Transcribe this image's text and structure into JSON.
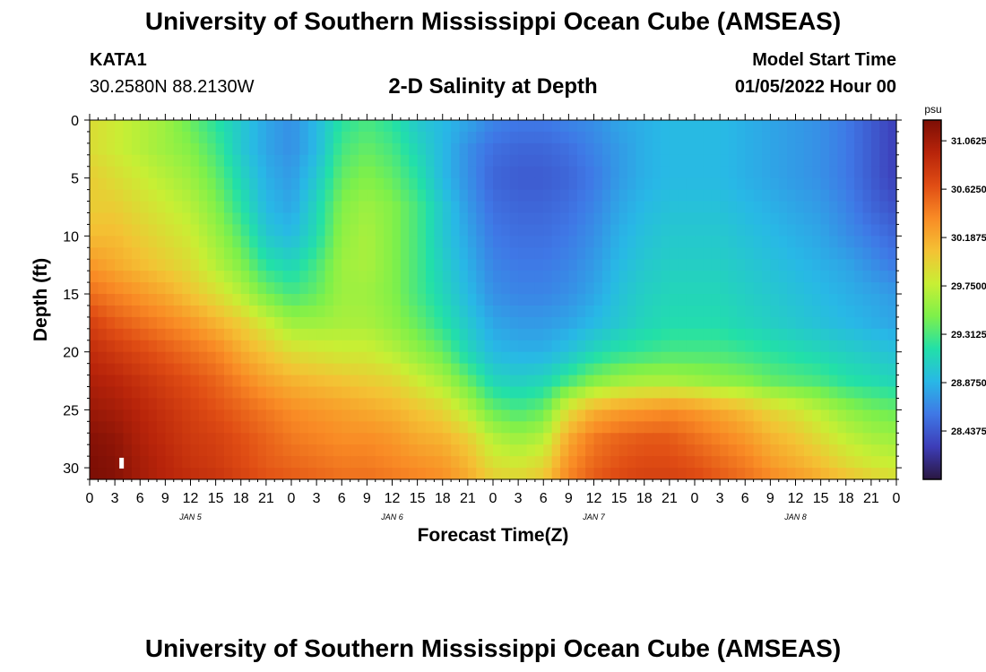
{
  "header": {
    "title": "University of Southern Mississippi Ocean Cube (AMSEAS)",
    "station_id": "KATA1",
    "coordinates": "30.2580N  88.2130W",
    "subtitle": "2-D Salinity at Depth",
    "model_start_label": "Model Start Time",
    "model_start_value": "01/05/2022 Hour 00"
  },
  "footer": {
    "title": "University of Southern Mississippi Ocean Cube (AMSEAS)"
  },
  "chart_data": {
    "type": "heatmap",
    "title": "2-D Salinity at Depth",
    "xlabel": "Forecast Time(Z)",
    "ylabel": "Depth (ft)",
    "x_tick_labels": [
      "0",
      "3",
      "6",
      "9",
      "12",
      "15",
      "18",
      "21",
      "0",
      "3",
      "6",
      "9",
      "12",
      "15",
      "18",
      "21",
      "0",
      "3",
      "6",
      "9",
      "12",
      "15",
      "18",
      "21",
      "0",
      "3",
      "6",
      "9",
      "12",
      "15",
      "18",
      "21",
      "0"
    ],
    "day_labels": [
      {
        "label": "JAN 5",
        "hour": 12
      },
      {
        "label": "JAN 6",
        "hour": 36
      },
      {
        "label": "JAN 7",
        "hour": 60
      },
      {
        "label": "JAN 8",
        "hour": 84
      }
    ],
    "xlim_hours": [
      0,
      96
    ],
    "ylim_ft": [
      0,
      31
    ],
    "y_ticks": [
      0,
      5,
      10,
      15,
      20,
      25,
      30
    ],
    "colorbar": {
      "unit": "psu",
      "vmin": 28.0,
      "vmax": 31.25,
      "ticks": [
        "31.0625",
        "30.6250",
        "30.1875",
        "29.7500",
        "29.3125",
        "28.8750",
        "28.4375"
      ]
    },
    "colormap_stops": [
      "#2a1740",
      "#3d3db8",
      "#3f78e6",
      "#28b8e6",
      "#22e0a8",
      "#7ef04a",
      "#c8ef34",
      "#f4c234",
      "#f98b25",
      "#e04d14",
      "#b8240a",
      "#7c0e05"
    ],
    "salinity_grid": {
      "hours": [
        0,
        3,
        6,
        9,
        12,
        15,
        18,
        21,
        24,
        27,
        30,
        33,
        36,
        39,
        42,
        45,
        48,
        51,
        54,
        57,
        60,
        63,
        66,
        69,
        72,
        75,
        78,
        81,
        84,
        87,
        90,
        93,
        96
      ],
      "depths": [
        0,
        2.5,
        5,
        7.5,
        10,
        12.5,
        15,
        17.5,
        20,
        22.5,
        25,
        27.5,
        30,
        31
      ],
      "rows": [
        [
          29.9,
          29.8,
          29.7,
          29.6,
          29.4,
          29.2,
          29.0,
          28.8,
          28.7,
          28.9,
          29.2,
          29.3,
          29.2,
          29.0,
          28.9,
          28.8,
          28.65,
          28.6,
          28.6,
          28.65,
          28.7,
          28.8,
          28.85,
          28.9,
          28.9,
          28.9,
          28.85,
          28.8,
          28.75,
          28.7,
          28.6,
          28.45,
          28.3
        ],
        [
          29.9,
          29.8,
          29.7,
          29.6,
          29.5,
          29.3,
          29.0,
          28.8,
          28.7,
          28.9,
          29.3,
          29.4,
          29.3,
          29.1,
          28.9,
          28.7,
          28.55,
          28.5,
          28.5,
          28.55,
          28.65,
          28.75,
          28.85,
          28.9,
          28.9,
          28.9,
          28.85,
          28.8,
          28.75,
          28.7,
          28.6,
          28.45,
          28.3
        ],
        [
          30.0,
          29.9,
          29.8,
          29.7,
          29.6,
          29.4,
          29.1,
          28.85,
          28.75,
          29.0,
          29.4,
          29.5,
          29.4,
          29.2,
          28.9,
          28.7,
          28.5,
          28.45,
          28.45,
          28.5,
          28.6,
          28.75,
          28.85,
          28.9,
          28.9,
          28.9,
          28.85,
          28.8,
          28.75,
          28.7,
          28.6,
          28.45,
          28.3
        ],
        [
          30.0,
          30.0,
          29.9,
          29.8,
          29.7,
          29.5,
          29.2,
          28.9,
          28.8,
          29.1,
          29.5,
          29.6,
          29.5,
          29.3,
          29.0,
          28.75,
          28.55,
          28.5,
          28.5,
          28.55,
          28.65,
          28.8,
          28.9,
          28.95,
          28.95,
          28.95,
          28.9,
          28.85,
          28.8,
          28.75,
          28.65,
          28.5,
          28.4
        ],
        [
          30.1,
          30.1,
          30.0,
          29.9,
          29.8,
          29.6,
          29.35,
          29.0,
          28.9,
          29.15,
          29.55,
          29.65,
          29.5,
          29.3,
          29.0,
          28.8,
          28.6,
          28.55,
          28.55,
          28.6,
          28.7,
          28.85,
          28.95,
          29.0,
          29.0,
          29.0,
          28.95,
          28.9,
          28.85,
          28.8,
          28.7,
          28.6,
          28.5
        ],
        [
          30.3,
          30.2,
          30.1,
          30.0,
          29.9,
          29.7,
          29.5,
          29.2,
          29.1,
          29.3,
          29.6,
          29.65,
          29.5,
          29.3,
          29.05,
          28.85,
          28.65,
          28.6,
          28.6,
          28.65,
          28.75,
          28.9,
          29.0,
          29.05,
          29.05,
          29.05,
          29.0,
          28.95,
          28.9,
          28.85,
          28.8,
          28.7,
          28.6
        ],
        [
          30.5,
          30.4,
          30.3,
          30.2,
          30.05,
          29.9,
          29.7,
          29.45,
          29.3,
          29.4,
          29.6,
          29.6,
          29.5,
          29.3,
          29.1,
          28.9,
          28.7,
          28.65,
          28.65,
          28.7,
          28.8,
          28.95,
          29.05,
          29.1,
          29.1,
          29.1,
          29.05,
          29.0,
          28.95,
          28.9,
          28.85,
          28.8,
          28.75
        ],
        [
          30.75,
          30.6,
          30.5,
          30.4,
          30.3,
          30.15,
          30.0,
          29.8,
          29.6,
          29.6,
          29.65,
          29.65,
          29.55,
          29.4,
          29.2,
          29.0,
          28.8,
          28.75,
          28.75,
          28.8,
          28.9,
          29.0,
          29.1,
          29.15,
          29.15,
          29.15,
          29.1,
          29.05,
          29.0,
          28.95,
          28.9,
          28.85,
          28.8
        ],
        [
          30.9,
          30.8,
          30.7,
          30.6,
          30.5,
          30.4,
          30.2,
          30.05,
          29.9,
          29.85,
          29.8,
          29.8,
          29.7,
          29.55,
          29.4,
          29.1,
          28.9,
          28.85,
          28.85,
          28.95,
          29.1,
          29.2,
          29.25,
          29.3,
          29.3,
          29.3,
          29.25,
          29.2,
          29.15,
          29.1,
          29.05,
          29.0,
          28.95
        ],
        [
          31.0,
          30.95,
          30.85,
          30.75,
          30.65,
          30.55,
          30.4,
          30.25,
          30.15,
          30.1,
          30.05,
          30.0,
          29.95,
          29.8,
          29.65,
          29.4,
          29.1,
          29.05,
          29.1,
          29.3,
          29.5,
          29.6,
          29.65,
          29.65,
          29.6,
          29.55,
          29.5,
          29.4,
          29.35,
          29.3,
          29.2,
          29.15,
          29.1
        ],
        [
          31.1,
          31.05,
          30.95,
          30.85,
          30.75,
          30.65,
          30.55,
          30.45,
          30.35,
          30.3,
          30.25,
          30.2,
          30.15,
          30.05,
          29.95,
          29.7,
          29.4,
          29.3,
          29.4,
          29.9,
          30.15,
          30.25,
          30.3,
          30.35,
          30.3,
          30.2,
          30.1,
          29.95,
          29.85,
          29.7,
          29.55,
          29.45,
          29.4
        ],
        [
          31.2,
          31.15,
          31.0,
          30.9,
          30.8,
          30.75,
          30.65,
          30.55,
          30.45,
          30.4,
          30.35,
          30.35,
          30.3,
          30.2,
          30.15,
          30.0,
          29.7,
          29.6,
          29.7,
          30.2,
          30.45,
          30.55,
          30.6,
          30.6,
          30.5,
          30.4,
          30.3,
          30.15,
          30.05,
          29.9,
          29.75,
          29.65,
          29.6
        ],
        [
          31.25,
          31.2,
          31.05,
          30.95,
          30.85,
          30.8,
          30.7,
          30.6,
          30.55,
          30.5,
          30.45,
          30.45,
          30.4,
          30.35,
          30.3,
          30.15,
          29.9,
          29.85,
          29.95,
          30.35,
          30.55,
          30.65,
          30.7,
          30.7,
          30.65,
          30.55,
          30.45,
          30.3,
          30.2,
          30.1,
          29.95,
          29.85,
          29.8
        ],
        [
          31.25,
          31.2,
          31.05,
          30.95,
          30.9,
          30.85,
          30.75,
          30.65,
          30.6,
          30.55,
          30.5,
          30.5,
          30.45,
          30.4,
          30.35,
          30.2,
          30.0,
          29.95,
          30.05,
          30.4,
          30.6,
          30.7,
          30.75,
          30.75,
          30.7,
          30.6,
          30.5,
          30.4,
          30.3,
          30.2,
          30.1,
          30.0,
          29.9
        ]
      ]
    }
  }
}
